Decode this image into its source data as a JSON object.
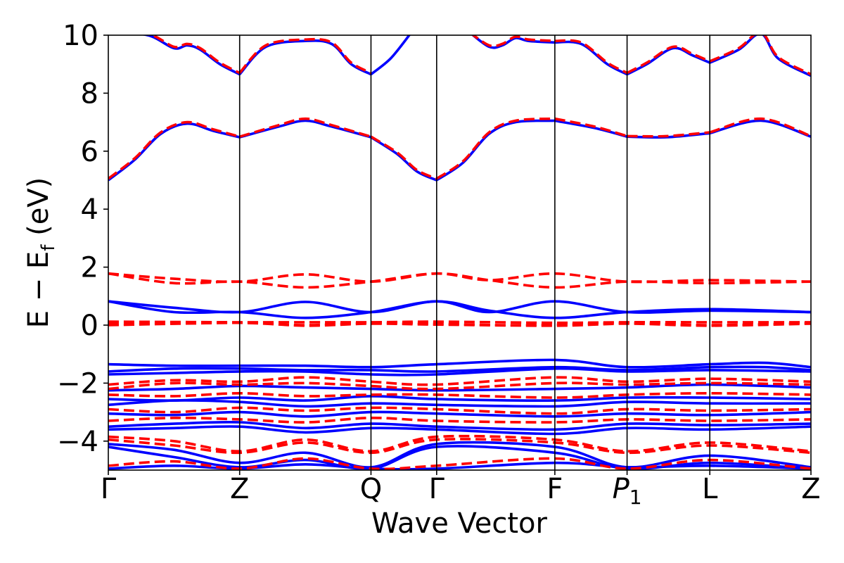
{
  "chart_data": {
    "type": "line",
    "title": "",
    "xlabel": "Wave Vector",
    "ylabel": {
      "main": "E − E",
      "subscript": "f",
      "unit": " (eV)"
    },
    "ylim": [
      -5,
      10
    ],
    "yticks": [
      -4,
      -2,
      0,
      2,
      4,
      6,
      8,
      10
    ],
    "ytick_labels": [
      "−4",
      "−2",
      "0",
      "2",
      "4",
      "6",
      "8",
      "10"
    ],
    "kpoints": [
      {
        "label": "Γ",
        "x": 0,
        "italic": false
      },
      {
        "label": "Z",
        "x": 1,
        "italic": false
      },
      {
        "label": "Q",
        "x": 2,
        "italic": false
      },
      {
        "label": "Γ",
        "x": 2.5,
        "italic": false
      },
      {
        "label": "F",
        "x": 3.4,
        "italic": false
      },
      {
        "label": "P",
        "sub": "1",
        "x": 3.95,
        "italic": true
      },
      {
        "label": "L",
        "x": 4.58,
        "italic": false
      },
      {
        "label": "Z",
        "x": 5.35,
        "italic": false
      }
    ],
    "xlim": [
      0,
      5.35
    ],
    "grid": false,
    "legend": "none",
    "styles": {
      "solid": {
        "color": "#0000ff",
        "dash": "none",
        "width": 3.6
      },
      "dashed": {
        "color": "#ff0000",
        "dash": "15,7",
        "width": 3.6
      }
    },
    "series": [
      {
        "style": "solid",
        "x": [
          0,
          0.3,
          0.5,
          0.6,
          0.7,
          0.85,
          1
        ],
        "y": [
          10.1,
          10.0,
          9.55,
          9.65,
          9.5,
          9.0,
          8.65
        ]
      },
      {
        "style": "solid",
        "x": [
          1,
          1.2,
          1.5,
          1.7,
          1.85,
          2
        ],
        "y": [
          8.65,
          9.6,
          9.8,
          9.7,
          9.0,
          8.65
        ]
      },
      {
        "style": "solid",
        "x": [
          2,
          2.15,
          2.3
        ],
        "y": [
          8.65,
          9.2,
          10.05
        ]
      },
      {
        "style": "solid",
        "x": [
          2.75,
          2.9,
          3.0,
          3.1,
          3.2,
          3.4
        ],
        "y": [
          10.1,
          9.6,
          9.65,
          9.9,
          9.8,
          9.75
        ]
      },
      {
        "style": "solid",
        "x": [
          3.4,
          3.6,
          3.8,
          3.95
        ],
        "y": [
          9.75,
          9.7,
          9.0,
          8.65
        ]
      },
      {
        "style": "solid",
        "x": [
          3.95,
          4.1,
          4.3,
          4.45,
          4.58
        ],
        "y": [
          8.65,
          9.0,
          9.55,
          9.3,
          9.05
        ]
      },
      {
        "style": "solid",
        "x": [
          4.58,
          4.8,
          4.97,
          5.1,
          5.35
        ],
        "y": [
          9.05,
          9.5,
          10.05,
          9.2,
          8.6
        ]
      },
      {
        "style": "solid",
        "x": [
          0,
          0.2,
          0.4,
          0.6,
          0.8,
          1
        ],
        "y": [
          5.0,
          5.7,
          6.6,
          6.95,
          6.7,
          6.48
        ]
      },
      {
        "style": "solid",
        "x": [
          1,
          1.3,
          1.5,
          1.7,
          2
        ],
        "y": [
          6.48,
          6.85,
          7.05,
          6.85,
          6.48
        ]
      },
      {
        "style": "solid",
        "x": [
          2,
          2.2,
          2.35,
          2.5
        ],
        "y": [
          6.48,
          5.9,
          5.3,
          5.0
        ]
      },
      {
        "style": "solid",
        "x": [
          2.5,
          2.7,
          2.9,
          3.1,
          3.4
        ],
        "y": [
          5.0,
          5.6,
          6.6,
          7.0,
          7.05
        ]
      },
      {
        "style": "solid",
        "x": [
          3.4,
          3.7,
          3.95
        ],
        "y": [
          7.05,
          6.8,
          6.5
        ]
      },
      {
        "style": "solid",
        "x": [
          3.95,
          4.25,
          4.58
        ],
        "y": [
          6.5,
          6.48,
          6.62
        ]
      },
      {
        "style": "solid",
        "x": [
          4.58,
          4.97,
          5.35
        ],
        "y": [
          6.62,
          7.05,
          6.5
        ]
      },
      {
        "style": "dashed",
        "x": [
          0,
          0.2,
          0.4,
          0.6,
          0.8,
          1
        ],
        "y": [
          5.05,
          5.75,
          6.65,
          7.0,
          6.75,
          6.5
        ]
      },
      {
        "style": "dashed",
        "x": [
          1,
          1.3,
          1.5,
          1.7,
          2
        ],
        "y": [
          6.5,
          6.9,
          7.12,
          6.9,
          6.5
        ]
      },
      {
        "style": "dashed",
        "x": [
          2,
          2.2,
          2.35,
          2.5
        ],
        "y": [
          6.5,
          5.95,
          5.35,
          5.05
        ]
      },
      {
        "style": "dashed",
        "x": [
          2.5,
          2.7,
          2.9,
          3.1,
          3.4
        ],
        "y": [
          5.05,
          5.65,
          6.65,
          7.05,
          7.12
        ]
      },
      {
        "style": "dashed",
        "x": [
          3.4,
          3.7,
          3.95
        ],
        "y": [
          7.12,
          6.85,
          6.52
        ]
      },
      {
        "style": "dashed",
        "x": [
          3.95,
          4.25,
          4.58
        ],
        "y": [
          6.52,
          6.52,
          6.65
        ]
      },
      {
        "style": "dashed",
        "x": [
          4.58,
          4.97,
          5.35
        ],
        "y": [
          6.65,
          7.12,
          6.52
        ]
      },
      {
        "style": "dashed",
        "x": [
          0,
          0.3,
          0.5,
          0.6,
          0.7,
          0.85,
          1
        ],
        "y": [
          10.1,
          10.05,
          9.6,
          9.7,
          9.55,
          9.05,
          8.7
        ]
      },
      {
        "style": "dashed",
        "x": [
          1,
          1.2,
          1.5,
          1.7,
          1.85,
          2
        ],
        "y": [
          8.7,
          9.65,
          9.85,
          9.75,
          9.05,
          8.7
        ]
      },
      {
        "style": "dashed",
        "x": [
          2.75,
          2.9,
          3.0,
          3.1,
          3.2,
          3.4
        ],
        "y": [
          10.1,
          9.65,
          9.7,
          9.95,
          9.85,
          9.8
        ]
      },
      {
        "style": "dashed",
        "x": [
          3.4,
          3.6,
          3.8,
          3.95
        ],
        "y": [
          9.8,
          9.75,
          9.05,
          8.7
        ]
      },
      {
        "style": "dashed",
        "x": [
          3.95,
          4.1,
          4.3,
          4.45,
          4.58
        ],
        "y": [
          8.7,
          9.05,
          9.6,
          9.35,
          9.1
        ]
      },
      {
        "style": "dashed",
        "x": [
          4.58,
          4.8,
          4.97,
          5.1,
          5.35
        ],
        "y": [
          9.1,
          9.55,
          10.1,
          9.25,
          8.65
        ]
      },
      {
        "style": "solid",
        "x": [
          0,
          0.5,
          1,
          1.5,
          2,
          2.5,
          2.9,
          3.4,
          3.95,
          4.58,
          5.35
        ],
        "y": [
          0.82,
          0.6,
          0.45,
          0.8,
          0.45,
          0.82,
          0.45,
          0.82,
          0.45,
          0.5,
          0.45
        ]
      },
      {
        "style": "solid",
        "x": [
          0,
          0.5,
          1,
          1.5,
          2,
          2.5,
          2.9,
          3.4,
          3.95,
          4.58,
          5.35
        ],
        "y": [
          0.82,
          0.45,
          0.45,
          0.25,
          0.45,
          0.82,
          0.5,
          0.25,
          0.45,
          0.55,
          0.45
        ]
      },
      {
        "style": "dashed",
        "x": [
          0,
          0.5,
          1,
          1.5,
          2,
          2.5,
          2.9,
          3.4,
          3.95,
          4.58,
          5.35
        ],
        "y": [
          1.78,
          1.6,
          1.5,
          1.75,
          1.5,
          1.78,
          1.55,
          1.78,
          1.5,
          1.55,
          1.5
        ]
      },
      {
        "style": "dashed",
        "x": [
          0,
          0.5,
          1,
          1.5,
          2,
          2.5,
          2.9,
          3.4,
          3.95,
          4.58,
          5.35
        ],
        "y": [
          1.78,
          1.45,
          1.5,
          1.3,
          1.5,
          1.78,
          1.55,
          1.3,
          1.5,
          1.45,
          1.5
        ]
      },
      {
        "style": "dashed",
        "x": [
          0,
          1,
          2,
          2.5,
          3.4,
          3.95,
          4.58,
          5.35
        ],
        "y": [
          0.12,
          0.1,
          0.1,
          0.12,
          0.08,
          0.1,
          0.1,
          0.1
        ]
      },
      {
        "style": "dashed",
        "x": [
          0,
          0.5,
          1,
          1.5,
          2,
          2.5,
          3.0,
          3.4,
          3.95,
          4.58,
          5.35
        ],
        "y": [
          0.05,
          0.05,
          0.08,
          0.0,
          0.08,
          0.05,
          0.0,
          0.02,
          0.08,
          0.0,
          0.08
        ]
      },
      {
        "style": "dashed",
        "x": [
          0,
          1,
          1.5,
          2,
          2.5,
          3.4,
          3.95,
          4.58,
          5.35
        ],
        "y": [
          0.0,
          0.08,
          -0.02,
          0.05,
          0.02,
          -0.02,
          0.05,
          -0.02,
          0.05
        ]
      },
      {
        "style": "solid",
        "x": [
          0,
          0.5,
          1,
          1.5,
          2,
          2.5,
          3.4,
          3.95,
          4.58,
          5.0,
          5.35
        ],
        "y": [
          -1.35,
          -1.4,
          -1.4,
          -1.4,
          -1.45,
          -1.35,
          -1.2,
          -1.45,
          -1.35,
          -1.3,
          -1.45
        ]
      },
      {
        "style": "solid",
        "x": [
          0,
          0.5,
          1,
          1.5,
          2,
          2.5,
          3.4,
          3.95,
          4.58,
          5.0,
          5.35
        ],
        "y": [
          -1.6,
          -1.5,
          -1.5,
          -1.55,
          -1.55,
          -1.6,
          -1.45,
          -1.55,
          -1.45,
          -1.45,
          -1.55
        ]
      },
      {
        "style": "solid",
        "x": [
          0,
          0.5,
          1,
          1.5,
          2,
          2.5,
          3.4,
          3.95,
          4.58,
          5.35
        ],
        "y": [
          -1.7,
          -1.65,
          -1.6,
          -1.6,
          -1.7,
          -1.7,
          -1.5,
          -1.6,
          -1.55,
          -1.6
        ]
      },
      {
        "style": "dashed",
        "x": [
          0,
          0.5,
          1,
          1.5,
          2,
          2.5,
          3.4,
          3.95,
          4.58,
          5.35
        ],
        "y": [
          -2.05,
          -1.9,
          -1.95,
          -1.8,
          -1.95,
          -2.05,
          -1.8,
          -1.95,
          -1.85,
          -1.95
        ]
      },
      {
        "style": "dashed",
        "x": [
          0,
          0.5,
          1,
          1.5,
          2,
          2.5,
          3.4,
          3.95,
          4.58,
          5.35
        ],
        "y": [
          -2.2,
          -2.0,
          -2.05,
          -2.0,
          -2.1,
          -2.2,
          -2.0,
          -2.05,
          -2.0,
          -2.05
        ]
      },
      {
        "style": "solid",
        "x": [
          0,
          0.5,
          1,
          1.5,
          2,
          2.5,
          3.4,
          3.95,
          4.58,
          5.35
        ],
        "y": [
          -2.25,
          -2.2,
          -2.1,
          -2.15,
          -2.2,
          -2.25,
          -2.2,
          -2.15,
          -2.05,
          -2.15
        ]
      },
      {
        "style": "dashed",
        "x": [
          0,
          0.5,
          1,
          1.5,
          2,
          2.5,
          3.4,
          3.95,
          4.58,
          5.35
        ],
        "y": [
          -2.4,
          -2.45,
          -2.35,
          -2.45,
          -2.4,
          -2.4,
          -2.5,
          -2.4,
          -2.35,
          -2.4
        ]
      },
      {
        "style": "solid",
        "x": [
          0,
          0.5,
          1,
          1.5,
          2,
          2.5,
          3.4,
          3.95,
          4.58,
          5.35
        ],
        "y": [
          -2.55,
          -2.6,
          -2.5,
          -2.6,
          -2.45,
          -2.55,
          -2.6,
          -2.5,
          -2.5,
          -2.55
        ]
      },
      {
        "style": "solid",
        "x": [
          0,
          0.5,
          1,
          1.5,
          2,
          2.5,
          3.4,
          3.95,
          4.58,
          5.35
        ],
        "y": [
          -2.75,
          -2.6,
          -2.65,
          -2.8,
          -2.7,
          -2.75,
          -2.8,
          -2.65,
          -2.7,
          -2.7
        ]
      },
      {
        "style": "dashed",
        "x": [
          0,
          0.5,
          1,
          1.5,
          2,
          2.5,
          3.4,
          3.95,
          4.58,
          5.35
        ],
        "y": [
          -2.9,
          -3.0,
          -2.85,
          -2.95,
          -2.85,
          -2.9,
          -3.05,
          -2.9,
          -2.95,
          -2.9
        ]
      },
      {
        "style": "solid",
        "x": [
          0,
          0.5,
          1,
          1.5,
          2,
          2.5,
          3.4,
          3.95,
          4.58,
          5.35
        ],
        "y": [
          -3.05,
          -3.1,
          -3.0,
          -3.15,
          -3.0,
          -3.05,
          -3.15,
          -3.05,
          -3.1,
          -3.0
        ]
      },
      {
        "style": "dashed",
        "x": [
          0,
          0.5,
          1,
          1.5,
          2,
          2.5,
          3.4,
          3.95,
          4.58,
          5.35
        ],
        "y": [
          -3.3,
          -3.2,
          -3.25,
          -3.35,
          -3.2,
          -3.3,
          -3.35,
          -3.25,
          -3.3,
          -3.25
        ]
      },
      {
        "style": "solid",
        "x": [
          0,
          0.5,
          1,
          1.5,
          2,
          2.5,
          3.4,
          3.95,
          4.58,
          5.35
        ],
        "y": [
          -3.5,
          -3.4,
          -3.35,
          -3.55,
          -3.4,
          -3.5,
          -3.6,
          -3.4,
          -3.45,
          -3.4
        ]
      },
      {
        "style": "solid",
        "x": [
          0,
          0.5,
          1,
          1.5,
          2,
          2.5,
          3.4,
          3.95,
          4.58,
          5.35
        ],
        "y": [
          -3.6,
          -3.55,
          -3.5,
          -3.7,
          -3.55,
          -3.6,
          -3.75,
          -3.55,
          -3.6,
          -3.5
        ]
      },
      {
        "style": "dashed",
        "x": [
          0,
          0.5,
          1,
          1.5,
          2,
          2.5,
          3.4,
          3.95,
          4.58,
          5.35
        ],
        "y": [
          -3.85,
          -4.0,
          -4.35,
          -3.95,
          -4.35,
          -3.85,
          -3.95,
          -4.35,
          -4.05,
          -4.35
        ]
      },
      {
        "style": "dashed",
        "x": [
          0,
          0.5,
          1,
          1.5,
          2,
          2.5,
          3.4,
          3.95,
          4.58,
          5.35
        ],
        "y": [
          -3.95,
          -4.15,
          -4.4,
          -4.05,
          -4.4,
          -3.95,
          -4.05,
          -4.4,
          -4.15,
          -4.4
        ]
      },
      {
        "style": "solid",
        "x": [
          0,
          0.5,
          1,
          1.5,
          2,
          2.5,
          3.4,
          3.95,
          4.58,
          5.35
        ],
        "y": [
          -4.1,
          -4.3,
          -4.75,
          -4.4,
          -4.9,
          -4.1,
          -4.2,
          -4.9,
          -4.5,
          -4.9
        ]
      },
      {
        "style": "solid",
        "x": [
          0,
          0.5,
          1,
          1.5,
          2,
          2.5,
          3.4,
          3.95,
          4.58,
          5.35
        ],
        "y": [
          -4.2,
          -4.55,
          -4.9,
          -4.65,
          -4.95,
          -4.2,
          -4.4,
          -4.95,
          -4.75,
          -4.95
        ]
      },
      {
        "style": "dashed",
        "x": [
          0,
          0.5,
          1,
          1.5,
          2,
          2.5,
          3.4,
          3.95,
          4.58,
          5.35
        ],
        "y": [
          -4.85,
          -4.7,
          -4.95,
          -4.6,
          -4.95,
          -4.85,
          -4.6,
          -4.95,
          -4.65,
          -4.95
        ]
      },
      {
        "style": "solid",
        "x": [
          0,
          0.5,
          1,
          1.5,
          2,
          2.5,
          3.4,
          3.95,
          4.58,
          5.35
        ],
        "y": [
          -4.95,
          -4.85,
          -4.95,
          -4.8,
          -4.95,
          -4.95,
          -4.75,
          -4.9,
          -4.85,
          -4.95
        ]
      }
    ]
  }
}
